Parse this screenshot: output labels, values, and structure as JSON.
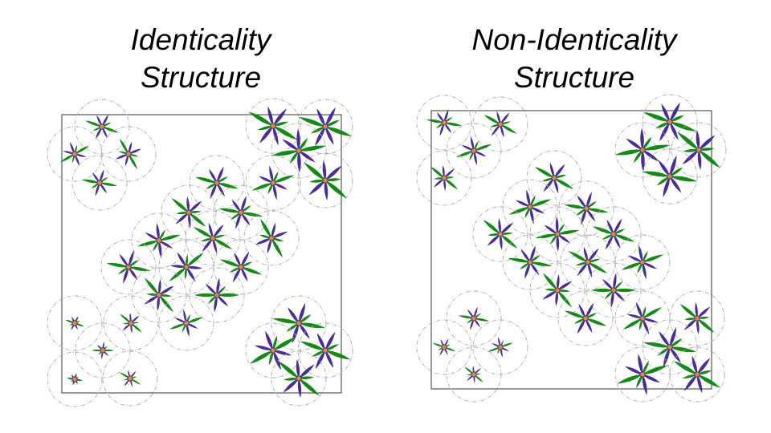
{
  "left_panel": {
    "title_line1": "Identicality",
    "title_line2": "Structure"
  },
  "right_panel": {
    "title_line1": "Non-Identicality",
    "title_line2": "Structure"
  },
  "colors": {
    "frame": "#333333",
    "circle": "#aaaaaa",
    "leaf_green": "#138a13",
    "petal_purple": "#4b2aa0",
    "center": "#e08a28"
  },
  "icons": {
    "plant": "four-blade-plant-icon",
    "region": "dashed-circle-region"
  }
}
